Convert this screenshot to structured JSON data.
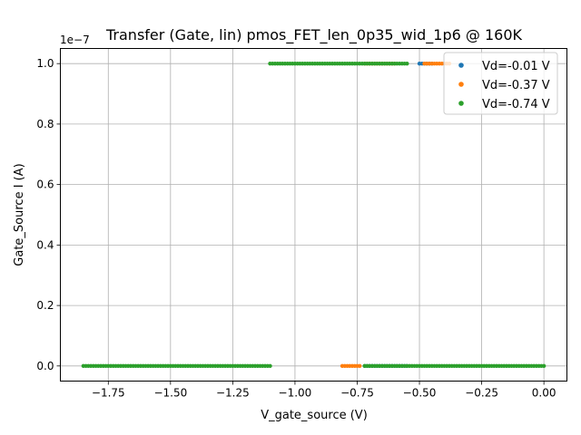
{
  "chart_data": {
    "type": "scatter",
    "title": "Transfer (Gate, lin) pmos_FET_len_0p35_wid_1p6 @ 160K",
    "xlabel": "V_gate_source (V)",
    "ylabel": "Gate_Source I (A)",
    "y_offset_label": "1e−7",
    "y_scale": 1e-07,
    "xlim": [
      -1.9425,
      0.0925
    ],
    "ylim": [
      -0.05,
      1.05
    ],
    "x_ticks": [
      -1.75,
      -1.5,
      -1.25,
      -1.0,
      -0.75,
      -0.5,
      -0.25,
      0.0
    ],
    "x_tick_labels": [
      "−1.75",
      "−1.50",
      "−1.25",
      "−1.00",
      "−0.75",
      "−0.50",
      "−0.25",
      "0.00"
    ],
    "y_ticks": [
      0.0,
      0.2,
      0.4,
      0.6,
      0.8,
      1.0
    ],
    "y_tick_labels": [
      "0.0",
      "0.2",
      "0.4",
      "0.6",
      "0.8",
      "1.0"
    ],
    "grid": true,
    "legend_position": "top-right",
    "series": [
      {
        "name": "Vd=-0.01 V",
        "color": "#1f77b4",
        "segments": [
          {
            "x_from": -0.72,
            "x_to": -0.55,
            "y": 0.0
          },
          {
            "x_from": -0.5,
            "x_to": -0.45,
            "y": 1.0
          }
        ]
      },
      {
        "name": "Vd=-0.37 V",
        "color": "#ff7f0e",
        "segments": [
          {
            "x_from": -0.81,
            "x_to": -0.74,
            "y": 0.0
          },
          {
            "x_from": -0.72,
            "x_to": -0.6,
            "y": 1.0
          },
          {
            "x_from": -0.48,
            "x_to": -0.38,
            "y": 1.0
          }
        ]
      },
      {
        "name": "Vd=-0.74 V",
        "color": "#2ca02c",
        "segments": [
          {
            "x_from": -1.85,
            "x_to": -1.1,
            "y": 0.0
          },
          {
            "x_from": -0.72,
            "x_to": 0.0,
            "y": 0.0
          },
          {
            "x_from": -1.1,
            "x_to": -0.55,
            "y": 1.0
          }
        ]
      }
    ]
  }
}
